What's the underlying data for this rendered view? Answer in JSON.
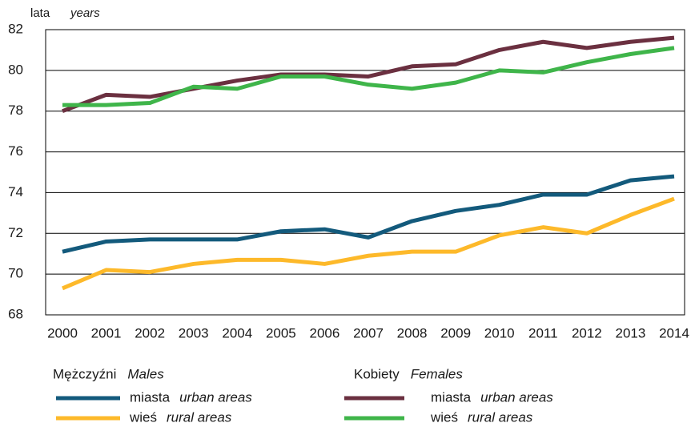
{
  "chart_data": {
    "type": "line",
    "y_label": "lata",
    "y_label_en": "years",
    "categories": [
      "2000",
      "2001",
      "2002",
      "2003",
      "2004",
      "2005",
      "2006",
      "2007",
      "2008",
      "2009",
      "2010",
      "2011",
      "2012",
      "2013",
      "2014"
    ],
    "ylim": [
      68,
      82
    ],
    "yticks": [
      68,
      70,
      72,
      74,
      76,
      78,
      80,
      82
    ],
    "grid": true,
    "legend_groups": [
      {
        "title": "Mężczyźni",
        "title_en": "Males"
      },
      {
        "title": "Kobiety",
        "title_en": "Females"
      }
    ],
    "series": [
      {
        "name": "miasta",
        "name_en": "urban areas",
        "group": 0,
        "color": "#135a7c",
        "values": [
          71.1,
          71.6,
          71.7,
          71.7,
          71.7,
          72.1,
          72.2,
          71.8,
          72.6,
          73.1,
          73.4,
          73.9,
          73.9,
          74.6,
          74.8
        ]
      },
      {
        "name": "wieś",
        "name_en": "rural areas",
        "group": 0,
        "color": "#fdb92a",
        "values": [
          69.3,
          70.2,
          70.1,
          70.5,
          70.7,
          70.7,
          70.5,
          70.9,
          71.1,
          71.1,
          71.9,
          72.3,
          72.0,
          72.9,
          73.7
        ]
      },
      {
        "name": "miasta",
        "name_en": "urban areas",
        "group": 1,
        "color": "#6b3040",
        "values": [
          78.0,
          78.8,
          78.7,
          79.1,
          79.5,
          79.8,
          79.8,
          79.7,
          80.2,
          80.3,
          81.0,
          81.4,
          81.1,
          81.4,
          81.6
        ]
      },
      {
        "name": "wieś",
        "name_en": "rural areas",
        "group": 1,
        "color": "#3fb54a",
        "values": [
          78.3,
          78.3,
          78.4,
          79.2,
          79.1,
          79.7,
          79.7,
          79.3,
          79.1,
          79.4,
          80.0,
          79.9,
          80.4,
          80.8,
          81.1
        ]
      }
    ]
  }
}
